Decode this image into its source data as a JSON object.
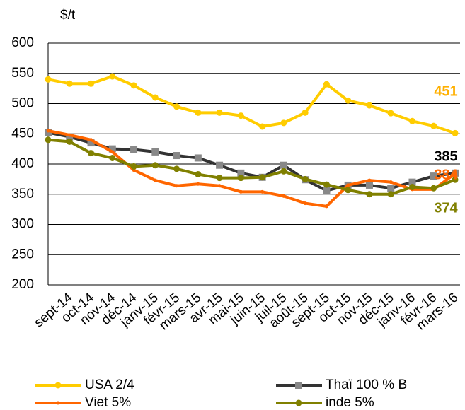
{
  "chart_data": {
    "type": "line",
    "y_axis_label": "$/t",
    "categories": [
      null,
      "sept-14",
      "oct-14",
      "nov-14",
      "déc-14",
      "janv-15",
      "févr-15",
      "mars-15",
      "avr-15",
      "mai-15",
      "juin-15",
      "juil-15",
      "août-15",
      "sept-15",
      "oct-15",
      "nov-15",
      "déc-15",
      "janv-16",
      "févr-16",
      "mars-16"
    ],
    "series": [
      {
        "name": "USA 2/4",
        "color": "#ffcc00",
        "marker": "circle",
        "values": [
          540,
          533,
          533,
          545,
          530,
          510,
          495,
          485,
          485,
          480,
          462,
          468,
          485,
          532,
          505,
          497,
          484,
          471,
          463,
          451
        ]
      },
      {
        "name": "Thaï 100 % B",
        "color": "#333333",
        "marker": "square",
        "values": [
          452,
          445,
          435,
          425,
          424,
          420,
          414,
          410,
          398,
          385,
          378,
          398,
          374,
          356,
          365,
          365,
          360,
          370,
          380,
          385
        ]
      },
      {
        "name": "Viet 5%",
        "color": "#ff6600",
        "marker": "dot",
        "values": [
          455,
          448,
          440,
          420,
          390,
          373,
          364,
          367,
          364,
          354,
          354,
          347,
          335,
          330,
          365,
          373,
          370,
          358,
          358,
          384
        ]
      },
      {
        "name": "inde 5%",
        "color": "#808000",
        "marker": "circle",
        "values": [
          440,
          437,
          418,
          410,
          396,
          398,
          392,
          383,
          377,
          377,
          378,
          388,
          375,
          366,
          357,
          350,
          350,
          362,
          360,
          374
        ]
      }
    ],
    "annotations": [
      {
        "text": "451",
        "color": "#ffb000"
      },
      {
        "text": "385",
        "color": "#000000"
      },
      {
        "text": "384",
        "color": "#ff6600"
      },
      {
        "text": "374",
        "color": "#808000"
      }
    ],
    "ylim": [
      200,
      600
    ],
    "yticks": [
      200,
      250,
      300,
      350,
      400,
      450,
      500,
      550,
      600
    ],
    "grid": true
  }
}
